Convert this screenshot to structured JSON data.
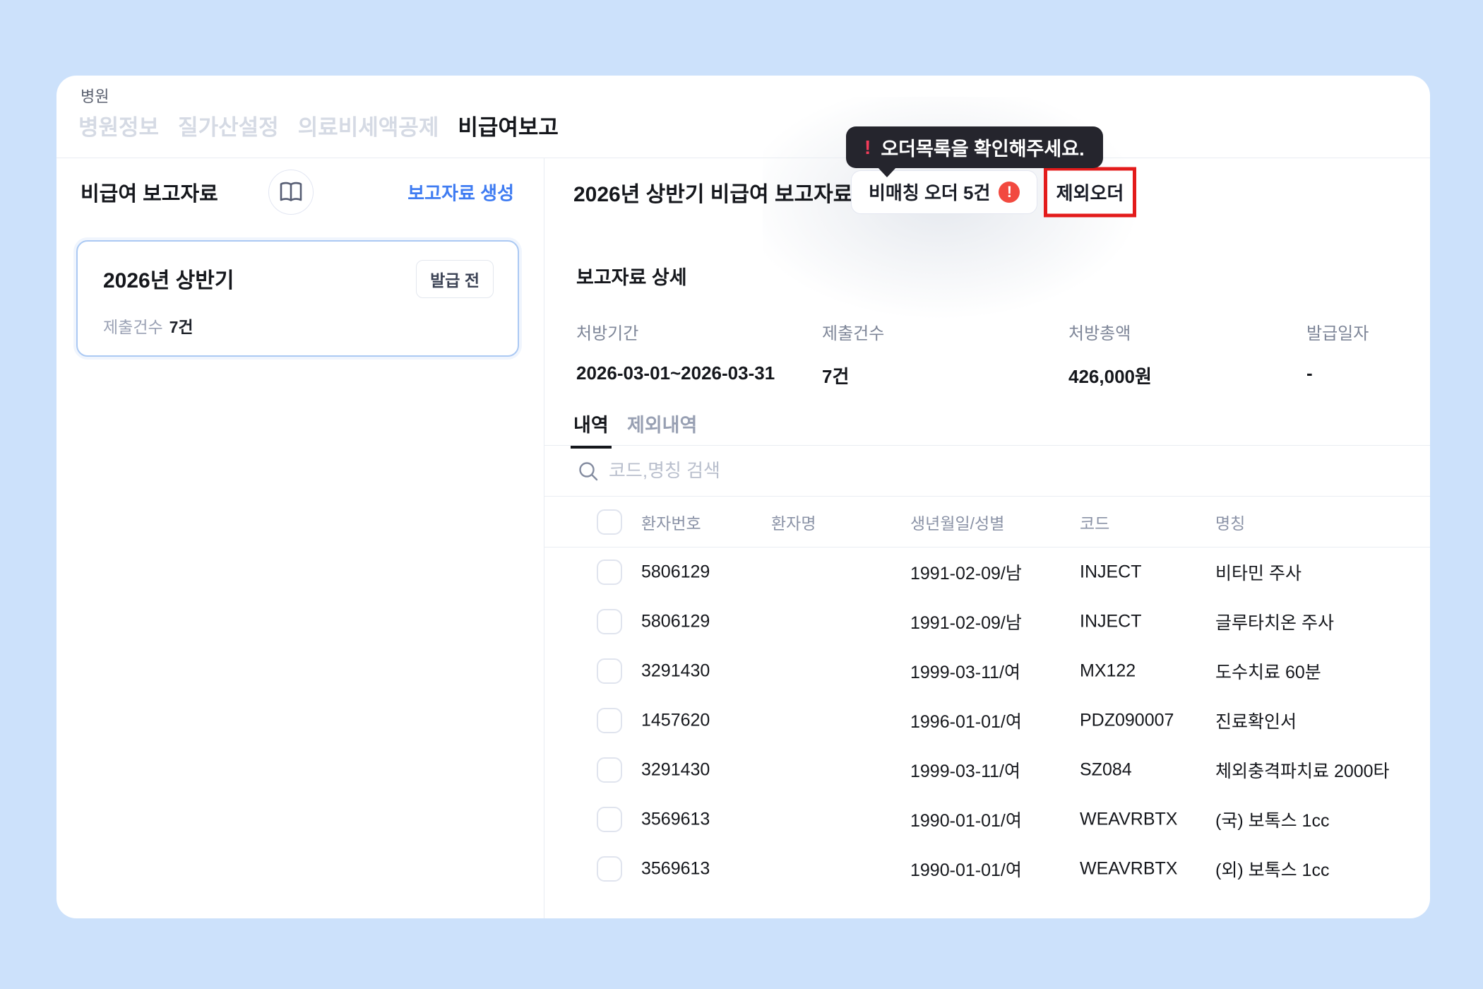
{
  "page": {
    "app_label": "병원",
    "nav_tabs": [
      {
        "name": "hospital-info",
        "label": "병원정보",
        "active": false
      },
      {
        "name": "quality-settings",
        "label": "질가산설정",
        "active": false
      },
      {
        "name": "tax-deduction",
        "label": "의료비세액공제",
        "active": false
      },
      {
        "name": "uninsured-report",
        "label": "비급여보고",
        "active": true
      }
    ]
  },
  "left_panel": {
    "title": "비급여 보고자료",
    "create_link": "보고자료 생성",
    "report_card": {
      "title": "2026년 상반기",
      "badge": "발급 전",
      "submit_label": "제출건수",
      "submit_value": "7건"
    }
  },
  "right_panel": {
    "title": "2026년 상반기 비급여 보고자료",
    "unmatched_button_label": "비매칭 오더 5건",
    "excluded_button_label": "제외오더",
    "tooltip_text": "오더목록을 확인해주세요.",
    "detail": {
      "heading": "보고자료 상세",
      "fields": [
        {
          "label": "처방기간",
          "value": "2026-03-01~2026-03-31"
        },
        {
          "label": "제출건수",
          "value": "7건"
        },
        {
          "label": "처방총액",
          "value": "426,000원"
        },
        {
          "label": "발급일자",
          "value": "-"
        }
      ]
    },
    "tabs": [
      {
        "name": "details",
        "label": "내역",
        "active": true
      },
      {
        "name": "excluded",
        "label": "제외내역",
        "active": false
      }
    ],
    "search_placeholder": "코드,명칭 검색",
    "table": {
      "columns": [
        "환자번호",
        "환자명",
        "생년월일/성별",
        "코드",
        "명칭"
      ],
      "rows": [
        {
          "patient_no": "5806129",
          "patient_name": "",
          "birth_sex": "1991-02-09/남",
          "code": "INJECT",
          "name": "비타민 주사"
        },
        {
          "patient_no": "5806129",
          "patient_name": "",
          "birth_sex": "1991-02-09/남",
          "code": "INJECT",
          "name": "글루타치온 주사"
        },
        {
          "patient_no": "3291430",
          "patient_name": "",
          "birth_sex": "1999-03-11/여",
          "code": "MX122",
          "name": "도수치료 60분"
        },
        {
          "patient_no": "1457620",
          "patient_name": "",
          "birth_sex": "1996-01-01/여",
          "code": "PDZ090007",
          "name": "진료확인서"
        },
        {
          "patient_no": "3291430",
          "patient_name": "",
          "birth_sex": "1999-03-11/여",
          "code": "SZ084",
          "name": "체외충격파치료 2000타"
        },
        {
          "patient_no": "3569613",
          "patient_name": "",
          "birth_sex": "1990-01-01/여",
          "code": "WEAVRBTX",
          "name": "(국) 보톡스 1cc"
        },
        {
          "patient_no": "3569613",
          "patient_name": "",
          "birth_sex": "1990-01-01/여",
          "code": "WEAVRBTX",
          "name": "(외) 보톡스 1cc"
        }
      ]
    }
  },
  "icons": {
    "exclamation": "!"
  },
  "colors": {
    "page_background": "#cce1fb",
    "accent_blue": "#3f7cf2",
    "alert_red": "#f2493f",
    "annotation_red": "#e31b1b",
    "tooltip_background": "#25252d",
    "tooltip_exclamation": "#f43c5a",
    "selected_card_border": "#abc9f3"
  }
}
